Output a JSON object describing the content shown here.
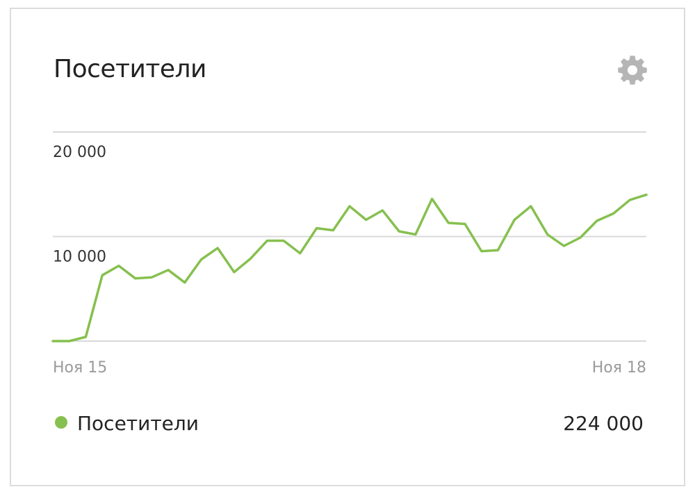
{
  "card": {
    "title": "Посетители",
    "settings_icon": "gear-icon"
  },
  "colors": {
    "series": "#86c04f",
    "grid": "#d9d9d9",
    "y_tick": "#333333",
    "x_tick": "#9a9a9a",
    "gear": "#b5b5b5"
  },
  "legend": {
    "label": "Посетители",
    "total": "224 000"
  },
  "chart_data": {
    "type": "line",
    "title": "",
    "xlabel": "",
    "ylabel": "",
    "ylim": [
      0,
      20000
    ],
    "yticks": [
      {
        "value": 20000,
        "label": "20 000"
      },
      {
        "value": 10000,
        "label": "10 000"
      }
    ],
    "xtick_labels": {
      "start": "Ноя 15",
      "end": "Ноя 18"
    },
    "grid": true,
    "legend_position": "bottom-left",
    "series": [
      {
        "name": "Посетители",
        "values": [
          0,
          0,
          400,
          6300,
          7200,
          6000,
          6100,
          6800,
          5600,
          7800,
          8900,
          6600,
          7900,
          9600,
          9600,
          8400,
          10800,
          10600,
          12900,
          11600,
          12500,
          10500,
          10200,
          13600,
          11300,
          11200,
          8600,
          8700,
          11600,
          12900,
          10200,
          9100,
          9900,
          11500,
          12200,
          13500,
          14000
        ]
      }
    ]
  }
}
